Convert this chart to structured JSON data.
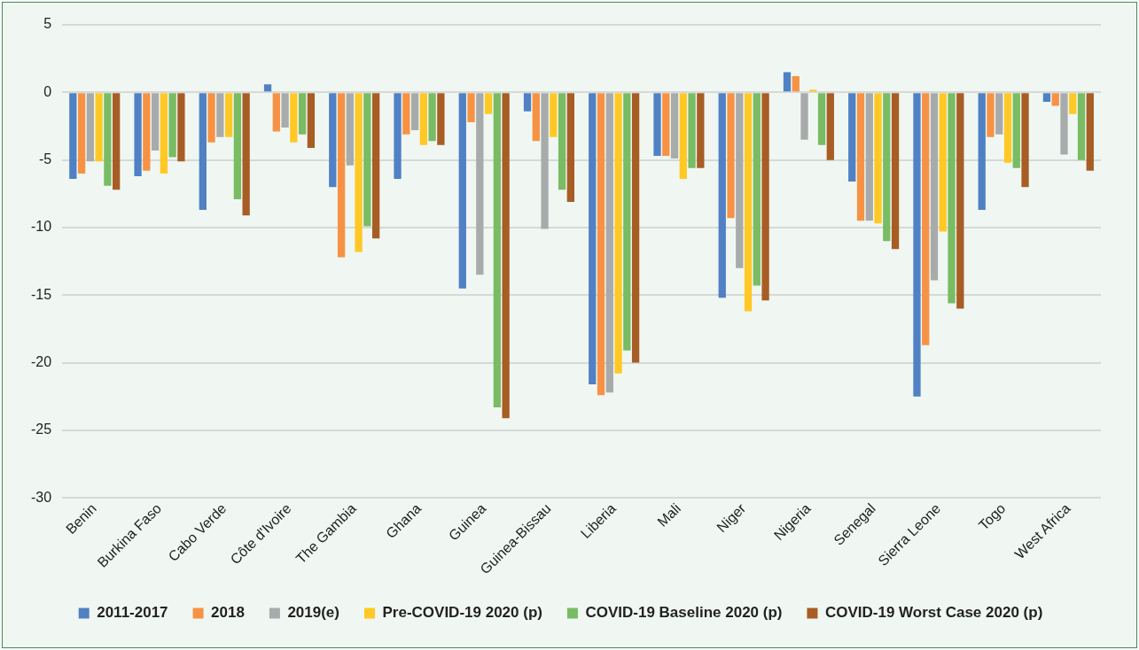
{
  "chart_data": {
    "type": "bar",
    "categories": [
      "Benin",
      "Burkina Faso",
      "Cabo Verde",
      "Côte d'Ivoire",
      "The Gambia",
      "Ghana",
      "Guinea",
      "Guinea-Bissau",
      "Liberia",
      "Mali",
      "Niger",
      "Nigeria",
      "Senegal",
      "Sierra Leone",
      "Togo",
      "West Africa"
    ],
    "series": [
      {
        "name": "2011-2017",
        "color": "#4f81c4",
        "values": [
          -6.4,
          -6.2,
          -8.7,
          0.6,
          -7.0,
          -6.4,
          -14.5,
          -1.4,
          -21.6,
          -4.7,
          -15.2,
          1.5,
          -6.6,
          -22.5,
          -8.7,
          -0.7
        ]
      },
      {
        "name": "2018",
        "color": "#f79244",
        "values": [
          -6.0,
          -5.8,
          -3.7,
          -2.9,
          -12.2,
          -3.1,
          -2.2,
          -3.6,
          -22.4,
          -4.7,
          -9.3,
          1.2,
          -9.5,
          -18.7,
          -3.3,
          -1.0
        ]
      },
      {
        "name": "2019(e)",
        "color": "#a8abab",
        "values": [
          -5.1,
          -4.3,
          -3.3,
          -2.6,
          -5.4,
          -2.8,
          -13.5,
          -10.1,
          -22.2,
          -4.9,
          -13.0,
          -3.5,
          -9.5,
          -13.9,
          -3.1,
          -4.6
        ]
      },
      {
        "name": "Pre-COVID-19 2020 (p)",
        "color": "#ffc825",
        "values": [
          -5.1,
          -6.0,
          -3.3,
          -3.7,
          -11.8,
          -3.9,
          -1.6,
          -3.3,
          -20.8,
          -6.4,
          -16.2,
          0.2,
          -9.7,
          -10.3,
          -5.2,
          -1.6
        ]
      },
      {
        "name": "COVID-19 Baseline 2020 (p)",
        "color": "#79bc63",
        "values": [
          -6.9,
          -4.8,
          -7.9,
          -3.1,
          -9.9,
          -3.6,
          -23.3,
          -7.2,
          -19.1,
          -5.6,
          -14.3,
          -3.9,
          -11.0,
          -15.6,
          -5.6,
          -5.0
        ]
      },
      {
        "name": "COVID-19 Worst Case 2020 (p)",
        "color": "#a75d24",
        "values": [
          -7.2,
          -5.1,
          -9.1,
          -4.1,
          -10.8,
          -3.9,
          -24.1,
          -8.1,
          -20.0,
          -5.6,
          -15.4,
          -5.0,
          -11.6,
          -16.0,
          -7.0,
          -5.8
        ]
      }
    ],
    "ylim": [
      -30,
      5
    ],
    "yticks": [
      5,
      0,
      -5,
      -10,
      -15,
      -20,
      -25,
      -30
    ],
    "grid": "y",
    "legend": "bottom"
  }
}
